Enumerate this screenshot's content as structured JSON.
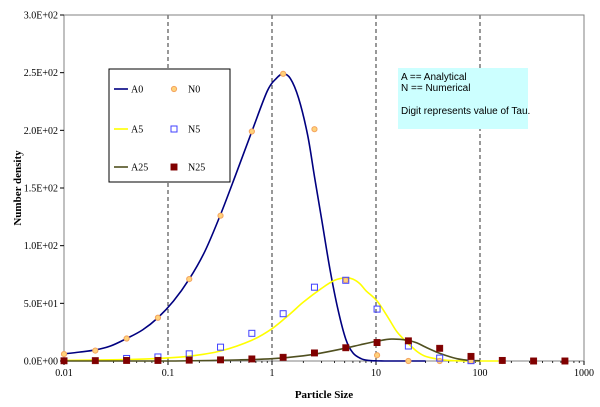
{
  "chart_data": {
    "type": "line",
    "xscale": "log",
    "xlim": [
      0.01,
      1000
    ],
    "ylim": [
      0,
      300
    ],
    "grid": "vertical-dashed",
    "xlabel": "Particle Size",
    "ylabel": "Number density",
    "x_ticks": [
      "0.01",
      "0.1",
      "1",
      "10",
      "100",
      "1000"
    ],
    "y_ticks": [
      "0.0E+00",
      "5.0E+01",
      "1.0E+02",
      "1.5E+02",
      "2.0E+02",
      "2.5E+02",
      "3.0E+02"
    ],
    "x_tick_values": [
      0.01,
      0.1,
      1,
      10,
      100,
      1000
    ],
    "y_tick_values": [
      0,
      50,
      100,
      150,
      200,
      250,
      300
    ],
    "legend_position": "upper-left",
    "series": [
      {
        "name": "A0",
        "kind": "line",
        "color": "#000080",
        "x": [
          0.01,
          0.014,
          0.02,
          0.028,
          0.04,
          0.057,
          0.08,
          0.113,
          0.16,
          0.226,
          0.32,
          0.45,
          0.64,
          0.9,
          1.1,
          1.28,
          1.5,
          1.8,
          2.2,
          2.56,
          3.0,
          3.6,
          4.3,
          5.12,
          6.0,
          7.2,
          8.5,
          10.24,
          12.5,
          15,
          20,
          25,
          30
        ],
        "y": [
          6.2,
          7.7,
          9.6,
          13,
          19.5,
          27,
          37.5,
          52,
          71,
          95,
          127,
          162,
          199,
          234,
          245,
          249,
          245,
          228,
          196,
          160,
          123,
          80,
          45,
          19,
          7,
          2,
          0.5,
          0.1,
          0,
          0,
          0,
          0,
          0
        ]
      },
      {
        "name": "N0",
        "kind": "marker-circle",
        "color": "#f4a460",
        "x": [
          0.01,
          0.02,
          0.04,
          0.08,
          0.16,
          0.32,
          0.64,
          1.28,
          2.56,
          5.12,
          10.24,
          20.48,
          40.96,
          81.92,
          163.84,
          327.68,
          655.36
        ],
        "y": [
          6,
          9,
          19.5,
          37.5,
          71,
          126,
          199,
          249,
          201,
          70,
          5,
          0,
          0,
          0,
          0,
          0,
          0
        ]
      },
      {
        "name": "A5",
        "kind": "line",
        "color": "#ffff00",
        "x": [
          0.01,
          0.02,
          0.04,
          0.08,
          0.16,
          0.32,
          0.64,
          1.0,
          1.5,
          2.0,
          3.0,
          4.0,
          5.12,
          6.0,
          7.0,
          8.0,
          10.24,
          13,
          16,
          20,
          25,
          30,
          40,
          50,
          60,
          80,
          100,
          150
        ],
        "y": [
          0.5,
          0.8,
          1.3,
          2.2,
          4.2,
          8.7,
          18,
          28,
          41,
          51,
          63,
          70,
          72,
          71,
          67,
          61,
          52,
          38,
          25,
          16,
          8,
          4,
          1.5,
          0.5,
          0.2,
          0,
          0,
          0
        ]
      },
      {
        "name": "N5",
        "kind": "marker-square",
        "color": "#4040ff",
        "x": [
          0.04,
          0.08,
          0.16,
          0.32,
          0.64,
          1.28,
          2.56,
          5.12,
          10.24,
          20.48,
          40.96,
          81.92
        ],
        "y": [
          2.2,
          3.5,
          6.2,
          12,
          24,
          41,
          64,
          70,
          45,
          13,
          2.5,
          0.3
        ]
      },
      {
        "name": "A25",
        "kind": "line",
        "color": "#505020",
        "x": [
          0.01,
          0.1,
          0.5,
          1,
          2,
          3,
          5,
          7,
          10,
          14,
          20,
          25,
          30,
          40,
          50,
          60,
          70,
          80,
          100
        ],
        "y": [
          0,
          0,
          1,
          2,
          4.5,
          7,
          11,
          14,
          17,
          19,
          18,
          15.5,
          12,
          7,
          4,
          2,
          1,
          0.5,
          0.2
        ]
      },
      {
        "name": "N25",
        "kind": "marker-filled-square",
        "color": "#800000",
        "x": [
          0.01,
          0.02,
          0.04,
          0.08,
          0.16,
          0.32,
          0.64,
          1.28,
          2.56,
          5.12,
          10.24,
          20.48,
          40.96,
          81.92,
          163.84,
          327.68,
          655.36
        ],
        "y": [
          0.2,
          0.3,
          0.5,
          0.5,
          0.7,
          1,
          1.8,
          3.2,
          7,
          11.5,
          16,
          17.5,
          11,
          4,
          0.5,
          0,
          0
        ]
      }
    ]
  },
  "annotation": {
    "line1": "A == Analytical",
    "line2": "N == Numerical",
    "line3": "Digit represents value of Tau."
  }
}
